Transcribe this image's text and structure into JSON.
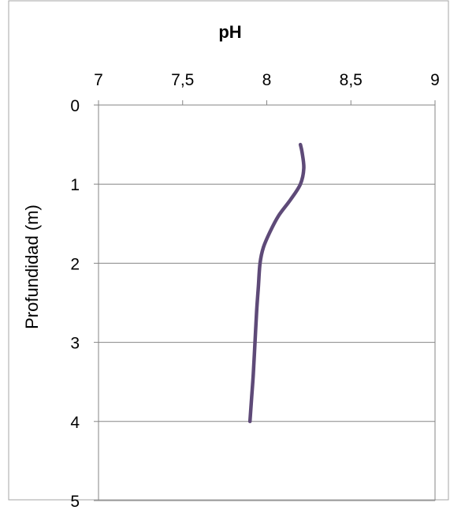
{
  "chart_data": {
    "type": "line",
    "title": "pH",
    "xlabel": "pH",
    "ylabel": "Profundidad (m)",
    "x_axis_position": "top",
    "y_axis_inverted": true,
    "xlim": [
      7,
      9
    ],
    "ylim": [
      0,
      5
    ],
    "x_ticks": [
      "7",
      "7,5",
      "8",
      "8,5",
      "9"
    ],
    "y_ticks": [
      "0",
      "1",
      "2",
      "3",
      "4",
      "5"
    ],
    "grid": "horizontal",
    "legend": "none",
    "series": [
      {
        "color": "#5e4a78",
        "points": [
          {
            "x": 8.2,
            "y": 0.5
          },
          {
            "x": 8.21,
            "y": 0.6
          },
          {
            "x": 8.22,
            "y": 0.8
          },
          {
            "x": 8.2,
            "y": 1.0
          },
          {
            "x": 8.14,
            "y": 1.2
          },
          {
            "x": 8.07,
            "y": 1.4
          },
          {
            "x": 8.02,
            "y": 1.6
          },
          {
            "x": 7.98,
            "y": 1.8
          },
          {
            "x": 7.96,
            "y": 2.0
          },
          {
            "x": 7.95,
            "y": 2.3
          },
          {
            "x": 7.94,
            "y": 2.6
          },
          {
            "x": 7.93,
            "y": 3.0
          },
          {
            "x": 7.92,
            "y": 3.4
          },
          {
            "x": 7.91,
            "y": 3.7
          },
          {
            "x": 7.9,
            "y": 4.0
          }
        ]
      }
    ]
  }
}
